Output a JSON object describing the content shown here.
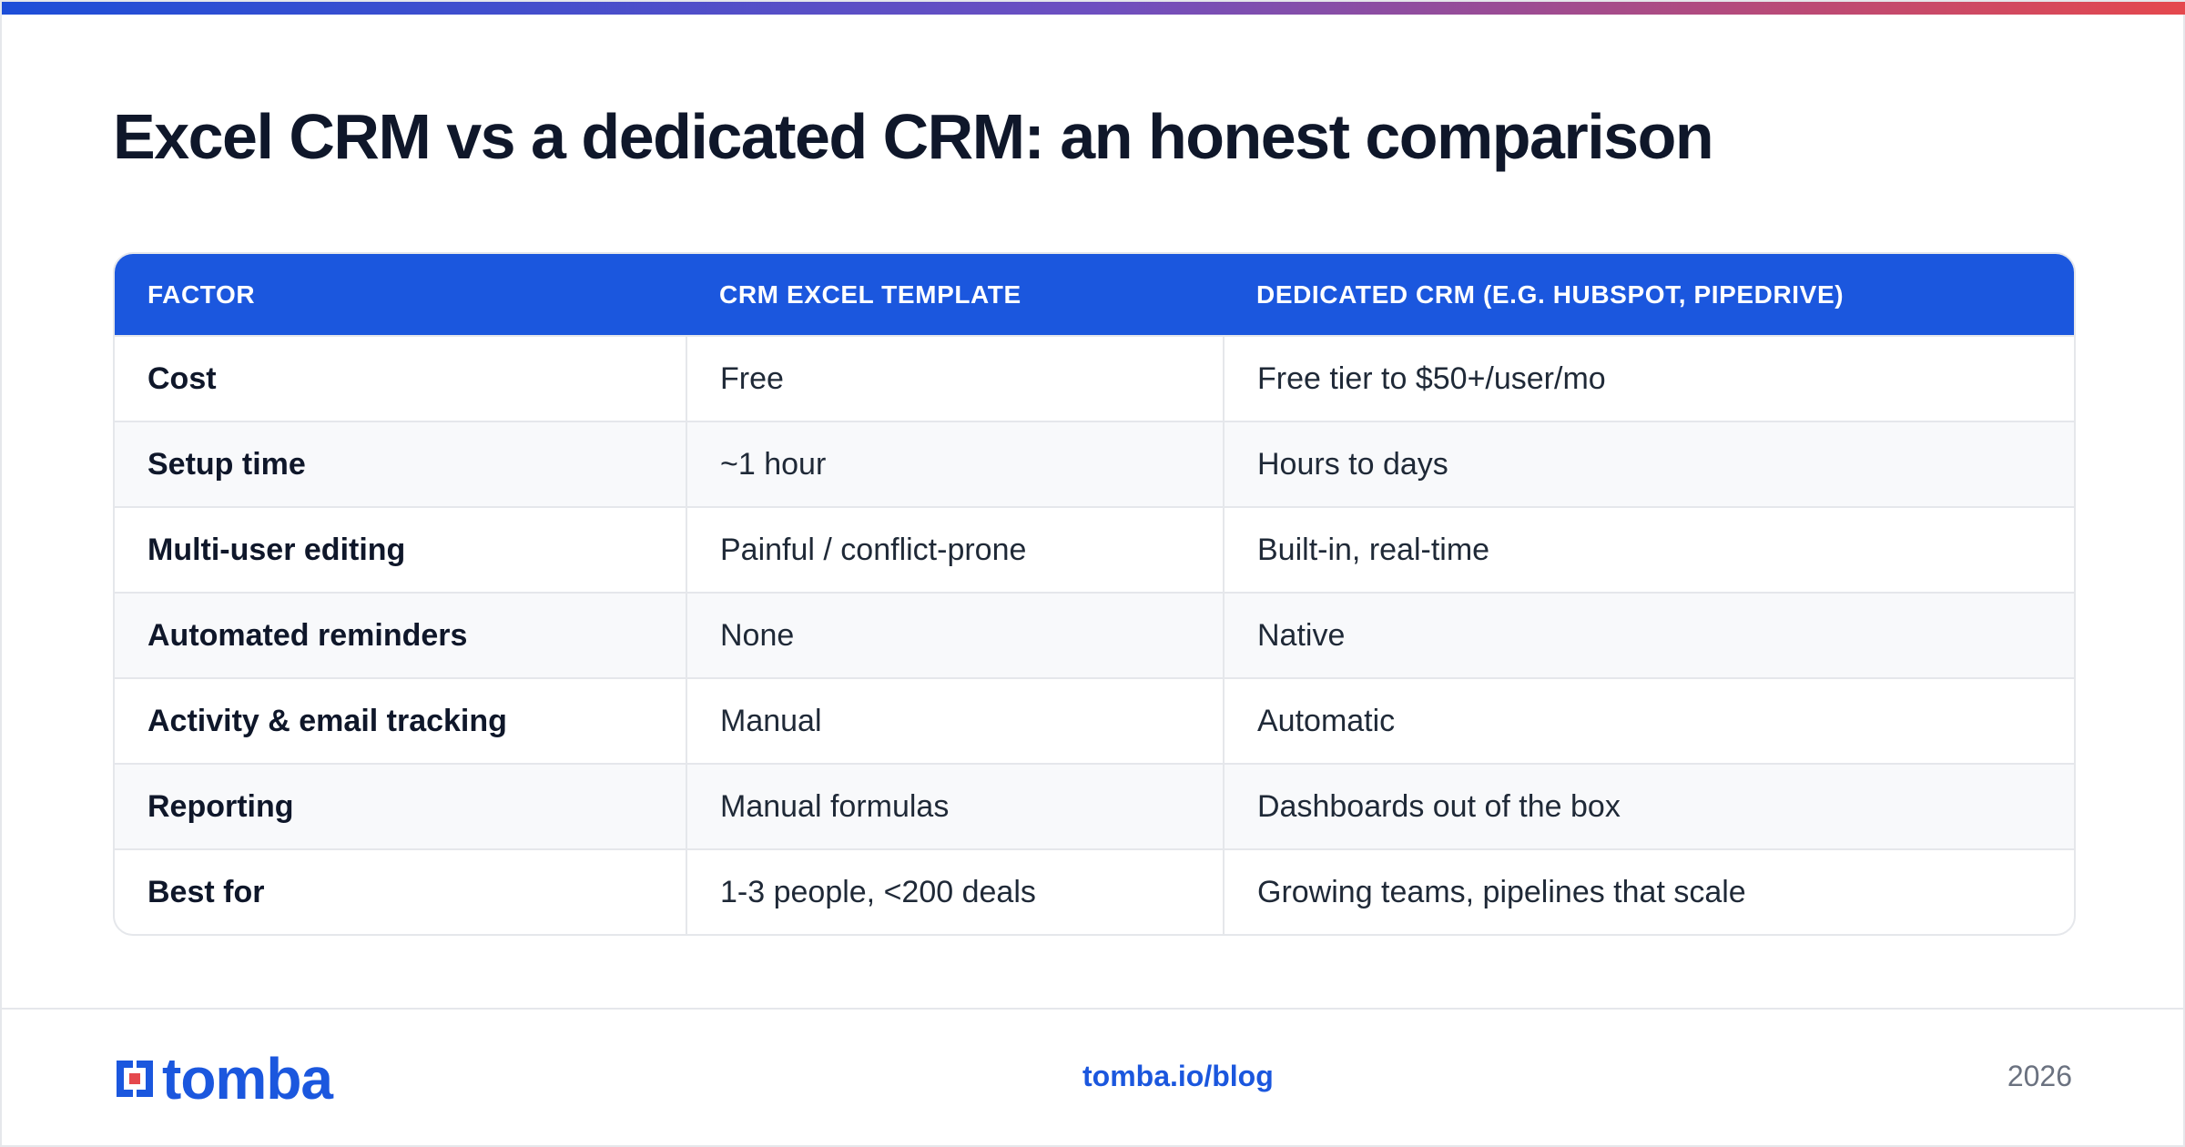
{
  "title": "Excel CRM vs a dedicated CRM: an honest comparison",
  "table": {
    "headers": [
      "FACTOR",
      "CRM EXCEL TEMPLATE",
      "DEDICATED CRM (E.G. HUBSPOT, PIPEDRIVE)"
    ],
    "rows": [
      [
        "Cost",
        "Free",
        "Free tier to $50+/user/mo"
      ],
      [
        "Setup time",
        "~1 hour",
        "Hours to days"
      ],
      [
        "Multi-user editing",
        "Painful / conflict-prone",
        "Built-in, real-time"
      ],
      [
        "Automated reminders",
        "None",
        "Native"
      ],
      [
        "Activity & email tracking",
        "Manual",
        "Automatic"
      ],
      [
        "Reporting",
        "Manual formulas",
        "Dashboards out of the box"
      ],
      [
        "Best for",
        "1-3 people, <200 deals",
        "Growing teams, pipelines that scale"
      ]
    ]
  },
  "footer": {
    "logo_text": "tomba",
    "link": "tomba.io/blog",
    "year": "2026"
  },
  "colors": {
    "accent": "#1b57de",
    "gradient_start": "#1d4ed8",
    "gradient_end": "#e5484d"
  }
}
